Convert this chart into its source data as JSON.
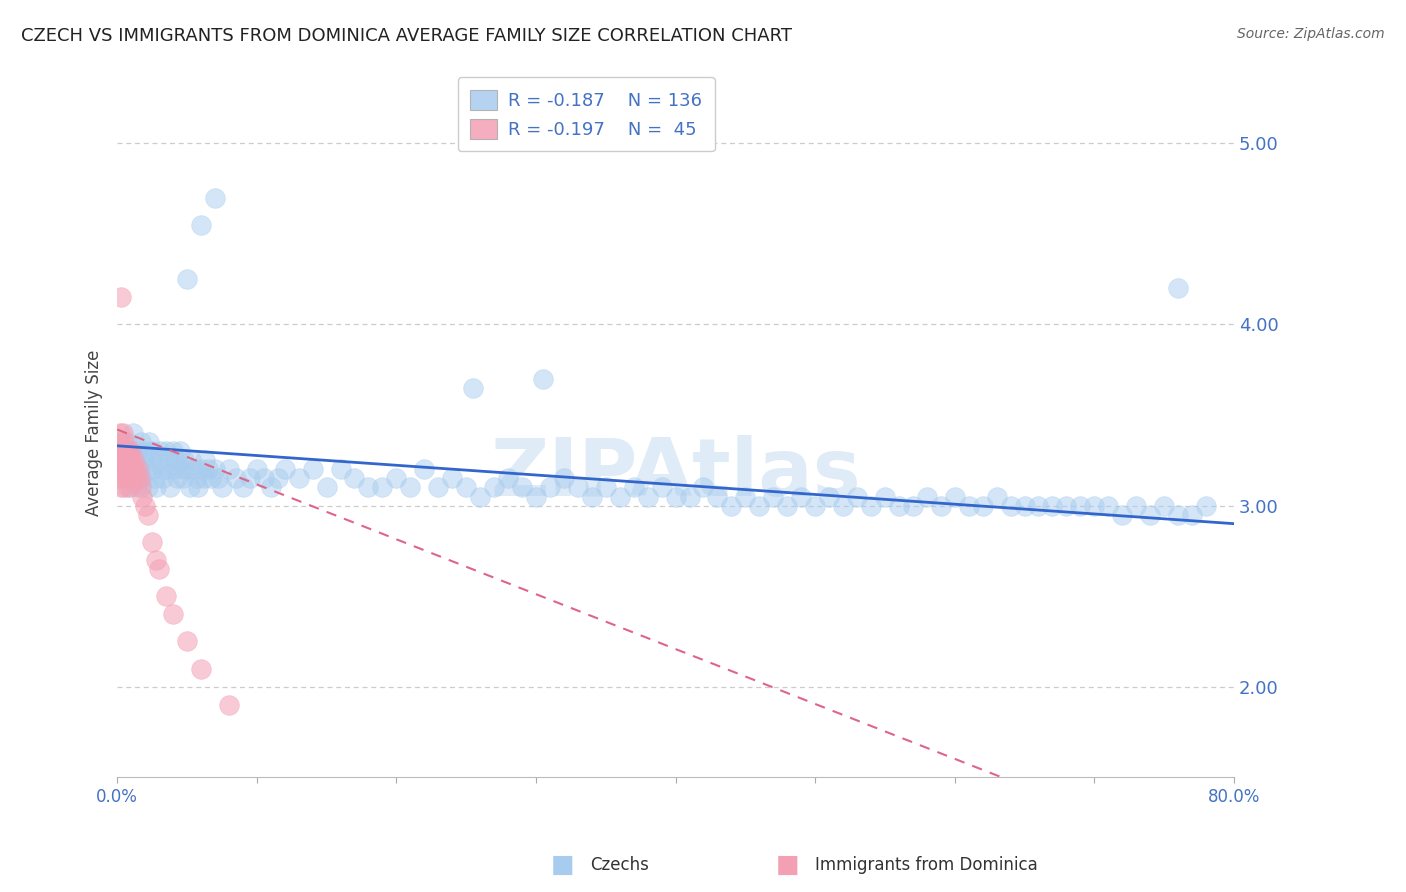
{
  "title": "CZECH VS IMMIGRANTS FROM DOMINICA AVERAGE FAMILY SIZE CORRELATION CHART",
  "source": "Source: ZipAtlas.com",
  "ylabel": "Average Family Size",
  "xmin": 0.0,
  "xmax": 0.8,
  "ymin": 1.5,
  "ymax": 5.3,
  "yticks": [
    2.0,
    3.0,
    4.0,
    5.0
  ],
  "xticks": [
    0.0,
    0.1,
    0.2,
    0.3,
    0.4,
    0.5,
    0.6,
    0.7,
    0.8
  ],
  "xtick_labels_show": [
    "0.0%",
    "",
    "",
    "",
    "",
    "",
    "",
    "",
    "80.0%"
  ],
  "blue_R": -0.187,
  "blue_N": 136,
  "pink_R": -0.197,
  "pink_N": 45,
  "blue_dot_color": "#A8CCEE",
  "pink_dot_color": "#F4A0B4",
  "blue_line_color": "#3366CC",
  "pink_line_color": "#DD6688",
  "axis_color": "#4472C4",
  "legend_text_color": "#333333",
  "legend_value_color": "#4472C4",
  "watermark_color": "#B8D4EE",
  "watermark_text": "ZIPAtlas",
  "blue_trend_x": [
    0.0,
    0.8
  ],
  "blue_trend_y": [
    3.33,
    2.9
  ],
  "pink_trend_x": [
    0.0,
    0.65
  ],
  "pink_trend_y": [
    3.42,
    1.45
  ],
  "blue_scatter_x": [
    0.005,
    0.006,
    0.007,
    0.008,
    0.009,
    0.01,
    0.01,
    0.011,
    0.012,
    0.013,
    0.014,
    0.015,
    0.016,
    0.017,
    0.018,
    0.019,
    0.02,
    0.021,
    0.022,
    0.023,
    0.024,
    0.025,
    0.026,
    0.027,
    0.028,
    0.03,
    0.031,
    0.032,
    0.033,
    0.035,
    0.036,
    0.037,
    0.038,
    0.04,
    0.041,
    0.042,
    0.043,
    0.045,
    0.046,
    0.047,
    0.048,
    0.05,
    0.052,
    0.053,
    0.055,
    0.057,
    0.058,
    0.06,
    0.062,
    0.063,
    0.065,
    0.067,
    0.07,
    0.072,
    0.075,
    0.08,
    0.085,
    0.09,
    0.095,
    0.1,
    0.105,
    0.11,
    0.115,
    0.12,
    0.13,
    0.14,
    0.15,
    0.16,
    0.17,
    0.18,
    0.19,
    0.2,
    0.21,
    0.22,
    0.23,
    0.24,
    0.25,
    0.26,
    0.27,
    0.28,
    0.29,
    0.3,
    0.31,
    0.32,
    0.33,
    0.34,
    0.35,
    0.36,
    0.37,
    0.38,
    0.39,
    0.4,
    0.41,
    0.42,
    0.43,
    0.44,
    0.45,
    0.46,
    0.47,
    0.48,
    0.49,
    0.5,
    0.51,
    0.52,
    0.53,
    0.54,
    0.55,
    0.56,
    0.57,
    0.58,
    0.59,
    0.6,
    0.61,
    0.62,
    0.63,
    0.64,
    0.65,
    0.66,
    0.67,
    0.68,
    0.69,
    0.7,
    0.71,
    0.72,
    0.73,
    0.74,
    0.75,
    0.76,
    0.77,
    0.78,
    0.05,
    0.06,
    0.07,
    0.255,
    0.305,
    0.76
  ],
  "blue_scatter_y": [
    3.3,
    3.2,
    3.35,
    3.1,
    3.25,
    3.3,
    3.15,
    3.4,
    3.2,
    3.25,
    3.1,
    3.3,
    3.2,
    3.35,
    3.15,
    3.25,
    3.3,
    3.2,
    3.1,
    3.35,
    3.25,
    3.3,
    3.2,
    3.15,
    3.1,
    3.25,
    3.3,
    3.2,
    3.15,
    3.3,
    3.2,
    3.25,
    3.1,
    3.3,
    3.2,
    3.25,
    3.15,
    3.3,
    3.2,
    3.15,
    3.25,
    3.2,
    3.1,
    3.25,
    3.2,
    3.15,
    3.1,
    3.2,
    3.15,
    3.25,
    3.2,
    3.15,
    3.2,
    3.15,
    3.1,
    3.2,
    3.15,
    3.1,
    3.15,
    3.2,
    3.15,
    3.1,
    3.15,
    3.2,
    3.15,
    3.2,
    3.1,
    3.2,
    3.15,
    3.1,
    3.1,
    3.15,
    3.1,
    3.2,
    3.1,
    3.15,
    3.1,
    3.05,
    3.1,
    3.15,
    3.1,
    3.05,
    3.1,
    3.15,
    3.1,
    3.05,
    3.1,
    3.05,
    3.1,
    3.05,
    3.1,
    3.05,
    3.05,
    3.1,
    3.05,
    3.0,
    3.05,
    3.0,
    3.05,
    3.0,
    3.05,
    3.0,
    3.05,
    3.0,
    3.05,
    3.0,
    3.05,
    3.0,
    3.0,
    3.05,
    3.0,
    3.05,
    3.0,
    3.0,
    3.05,
    3.0,
    3.0,
    3.0,
    3.0,
    3.0,
    3.0,
    3.0,
    3.0,
    2.95,
    3.0,
    2.95,
    3.0,
    2.95,
    2.95,
    3.0,
    4.25,
    4.55,
    4.7,
    3.65,
    3.7,
    4.2
  ],
  "pink_scatter_x": [
    0.001,
    0.001,
    0.002,
    0.002,
    0.002,
    0.003,
    0.003,
    0.003,
    0.004,
    0.004,
    0.004,
    0.005,
    0.005,
    0.005,
    0.006,
    0.006,
    0.006,
    0.007,
    0.007,
    0.008,
    0.008,
    0.009,
    0.009,
    0.01,
    0.01,
    0.011,
    0.011,
    0.012,
    0.013,
    0.014,
    0.015,
    0.016,
    0.017,
    0.018,
    0.02,
    0.022,
    0.025,
    0.028,
    0.03,
    0.035,
    0.04,
    0.05,
    0.06,
    0.08,
    0.003
  ],
  "pink_scatter_y": [
    3.3,
    3.2,
    3.35,
    3.4,
    3.15,
    3.25,
    3.3,
    3.1,
    3.2,
    3.3,
    3.4,
    3.35,
    3.2,
    3.1,
    3.3,
    3.2,
    3.25,
    3.3,
    3.15,
    3.25,
    3.3,
    3.2,
    3.1,
    3.25,
    3.3,
    3.2,
    3.15,
    3.25,
    3.2,
    3.15,
    3.2,
    3.15,
    3.1,
    3.05,
    3.0,
    2.95,
    2.8,
    2.7,
    2.65,
    2.5,
    2.4,
    2.25,
    2.1,
    1.9,
    4.15
  ]
}
